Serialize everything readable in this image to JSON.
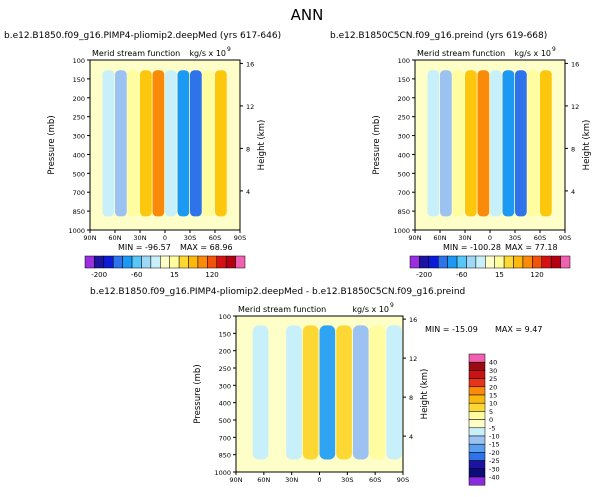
{
  "figure_title": "ANN",
  "chart_data": [
    {
      "type": "heatmap",
      "case_title": "b.e12.B1850.f09_g16.PIMP4-pliomip2.deepMed (yrs 617-646)",
      "variable_label": "Merid stream function",
      "units_label": "kg/s x 10",
      "units_exponent": "9",
      "min_text": "MIN = -96.57",
      "max_text": "MAX = 68.96",
      "x_ticks": [
        "90N",
        "60N",
        "30N",
        "0",
        "30S",
        "60S",
        "90S"
      ],
      "y_ticks": [
        "100",
        "150",
        "200",
        "250",
        "300",
        "400",
        "500",
        "700",
        "850",
        "1000"
      ],
      "height_ticks": [
        "16",
        "12",
        "8",
        "4"
      ],
      "ylabel": "Pressure (mb)",
      "ylabel_right": "Height (km)",
      "colorbar_labels": [
        "-200",
        "-60",
        "15",
        "120"
      ],
      "palette": "full",
      "cells": [
        {
          "lat": "75N",
          "fill": "#fefec9"
        },
        {
          "lat": "60N",
          "fill": "#c8f0fb"
        },
        {
          "lat": "45N",
          "fill": "#9cc2f2"
        },
        {
          "lat": "30N",
          "fill": "#fffd9f"
        },
        {
          "lat": "22N",
          "fill": "#fdc70e"
        },
        {
          "lat": "15N",
          "fill": "#f98a0a"
        },
        {
          "lat": "5N",
          "fill": "#c8f0fb"
        },
        {
          "lat": "5S",
          "fill": "#1c9af3"
        },
        {
          "lat": "12S",
          "fill": "#2f73ea"
        },
        {
          "lat": "30S",
          "fill": "#fffd9f"
        },
        {
          "lat": "45S",
          "fill": "#fdc70e"
        },
        {
          "lat": "60S",
          "fill": "#fefec9"
        }
      ]
    },
    {
      "type": "heatmap",
      "case_title": "b.e12.B1850C5CN.f09_g16.preind (yrs 619-668)",
      "variable_label": "Merid stream function",
      "units_label": "kg/s x 10",
      "units_exponent": "9",
      "min_text": "MIN = -100.28",
      "max_text": "MAX = 77.18",
      "x_ticks": [
        "90N",
        "60N",
        "30N",
        "0",
        "30S",
        "60S",
        "90S"
      ],
      "y_ticks": [
        "100",
        "150",
        "200",
        "250",
        "300",
        "400",
        "500",
        "700",
        "850",
        "1000"
      ],
      "height_ticks": [
        "16",
        "12",
        "8",
        "4"
      ],
      "ylabel": "Pressure (mb)",
      "ylabel_right": "Height (km)",
      "colorbar_labels": [
        "-200",
        "-60",
        "15",
        "120"
      ],
      "palette": "full",
      "cells": [
        {
          "lat": "75N",
          "fill": "#fefec9"
        },
        {
          "lat": "60N",
          "fill": "#c8f0fb"
        },
        {
          "lat": "45N",
          "fill": "#9cc2f2"
        },
        {
          "lat": "30N",
          "fill": "#fffd9f"
        },
        {
          "lat": "22N",
          "fill": "#fdc70e"
        },
        {
          "lat": "15N",
          "fill": "#f98a0a"
        },
        {
          "lat": "5N",
          "fill": "#c8f0fb"
        },
        {
          "lat": "5S",
          "fill": "#1c9af3"
        },
        {
          "lat": "12S",
          "fill": "#2f73ea"
        },
        {
          "lat": "30S",
          "fill": "#fffd9f"
        },
        {
          "lat": "45S",
          "fill": "#fdc70e"
        },
        {
          "lat": "60S",
          "fill": "#fefec9"
        }
      ]
    },
    {
      "type": "heatmap",
      "case_title": "b.e12.B1850.f09_g16.PIMP4-pliomip2.deepMed - b.e12.B1850C5CN.f09_g16.preind",
      "variable_label": "Merid stream function",
      "units_label": "kg/s x 10",
      "units_exponent": "9",
      "min_text": "MIN = -15.09",
      "max_text": "MAX = 9.47",
      "x_ticks": [
        "90N",
        "60N",
        "30N",
        "0",
        "30S",
        "60S",
        "90S"
      ],
      "y_ticks": [
        "100",
        "150",
        "200",
        "250",
        "300",
        "400",
        "500",
        "700",
        "850",
        "1000"
      ],
      "height_ticks": [
        "16",
        "12",
        "8",
        "4"
      ],
      "ylabel": "Pressure (mb)",
      "ylabel_right": "Height (km)",
      "colorbar_labels": [
        "40",
        "30",
        "25",
        "20",
        "15",
        "10",
        "5",
        "0",
        "-5",
        "-10",
        "-15",
        "-20",
        "-25",
        "-30",
        "-40"
      ],
      "palette": "diff",
      "cells": [
        {
          "lat": "80N",
          "fill": "#fefec9"
        },
        {
          "lat": "60N",
          "fill": "#c8f0fb"
        },
        {
          "lat": "40N",
          "fill": "#fefec9"
        },
        {
          "lat": "20N",
          "fill": "#c8f0fb"
        },
        {
          "lat": "10N",
          "fill": "#fdd835"
        },
        {
          "lat": "0",
          "fill": "#2fa4f4"
        },
        {
          "lat": "10S",
          "fill": "#fdd835"
        },
        {
          "lat": "30S",
          "fill": "#9cc2f2"
        },
        {
          "lat": "45S",
          "fill": "#fffd9f"
        },
        {
          "lat": "70S",
          "fill": "#c8f0fb"
        }
      ]
    }
  ],
  "colorbar_colors": {
    "full": [
      "#9a2fe0",
      "#1c14a0",
      "#0d1bd6",
      "#2f73ea",
      "#1c9af3",
      "#58c6f7",
      "#9ed8f6",
      "#c8f0fb",
      "#fefec9",
      "#fffd9f",
      "#fdd835",
      "#fdb80e",
      "#f98a0a",
      "#f2520c",
      "#d41213",
      "#b30012",
      "#f060b0"
    ],
    "diff": [
      "#f060b0",
      "#9a0b14",
      "#c91214",
      "#e6341a",
      "#f98a0a",
      "#fdb80e",
      "#fdd835",
      "#fffd9f",
      "#fefec9",
      "#c8f0fb",
      "#9cc2f2",
      "#58a0ee",
      "#2f73ea",
      "#1c14a0",
      "#0d0d7a",
      "#8a2be2"
    ]
  }
}
